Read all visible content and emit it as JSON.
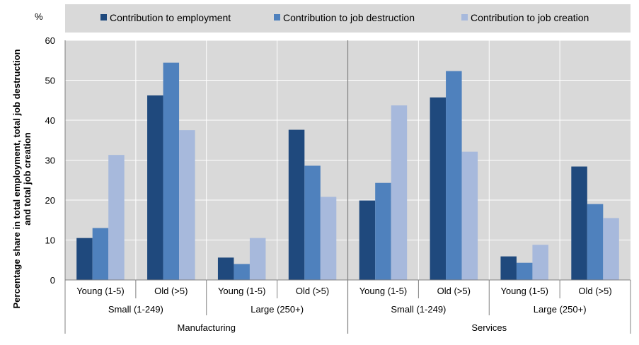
{
  "chart_data": {
    "type": "bar",
    "ylabel_lines": [
      "Percentage share in total  employment, total job destruction",
      "and total  job creation"
    ],
    "unit_label": "%",
    "ylim": [
      0,
      60
    ],
    "yticks": [
      0,
      10,
      20,
      30,
      40,
      50,
      60
    ],
    "grid": true,
    "legend_position": "top",
    "categories": [
      "Young (1-5)",
      "Old (>5)",
      "Young (1-5)",
      "Old (>5)",
      "Young (1-5)",
      "Old (>5)",
      "Young (1-5)",
      "Old (>5)"
    ],
    "size_groups": [
      "Small (1-249)",
      "Large (250+)",
      "Small (1-249)",
      "Large (250+)"
    ],
    "sectors": [
      "Manufacturing",
      "Services"
    ],
    "series": [
      {
        "name": "Contribution to employment",
        "color": "#1f497d",
        "values": [
          10.5,
          46.2,
          5.6,
          37.6,
          19.9,
          45.7,
          5.9,
          28.4
        ]
      },
      {
        "name": "Contribution to job destruction",
        "color": "#4f81bd",
        "values": [
          13.0,
          54.4,
          4.0,
          28.6,
          24.3,
          52.3,
          4.3,
          19.0
        ]
      },
      {
        "name": "Contribution to job creation",
        "color": "#a7b9dc",
        "values": [
          31.3,
          37.5,
          10.5,
          20.8,
          43.7,
          32.1,
          8.8,
          15.5
        ]
      }
    ]
  }
}
